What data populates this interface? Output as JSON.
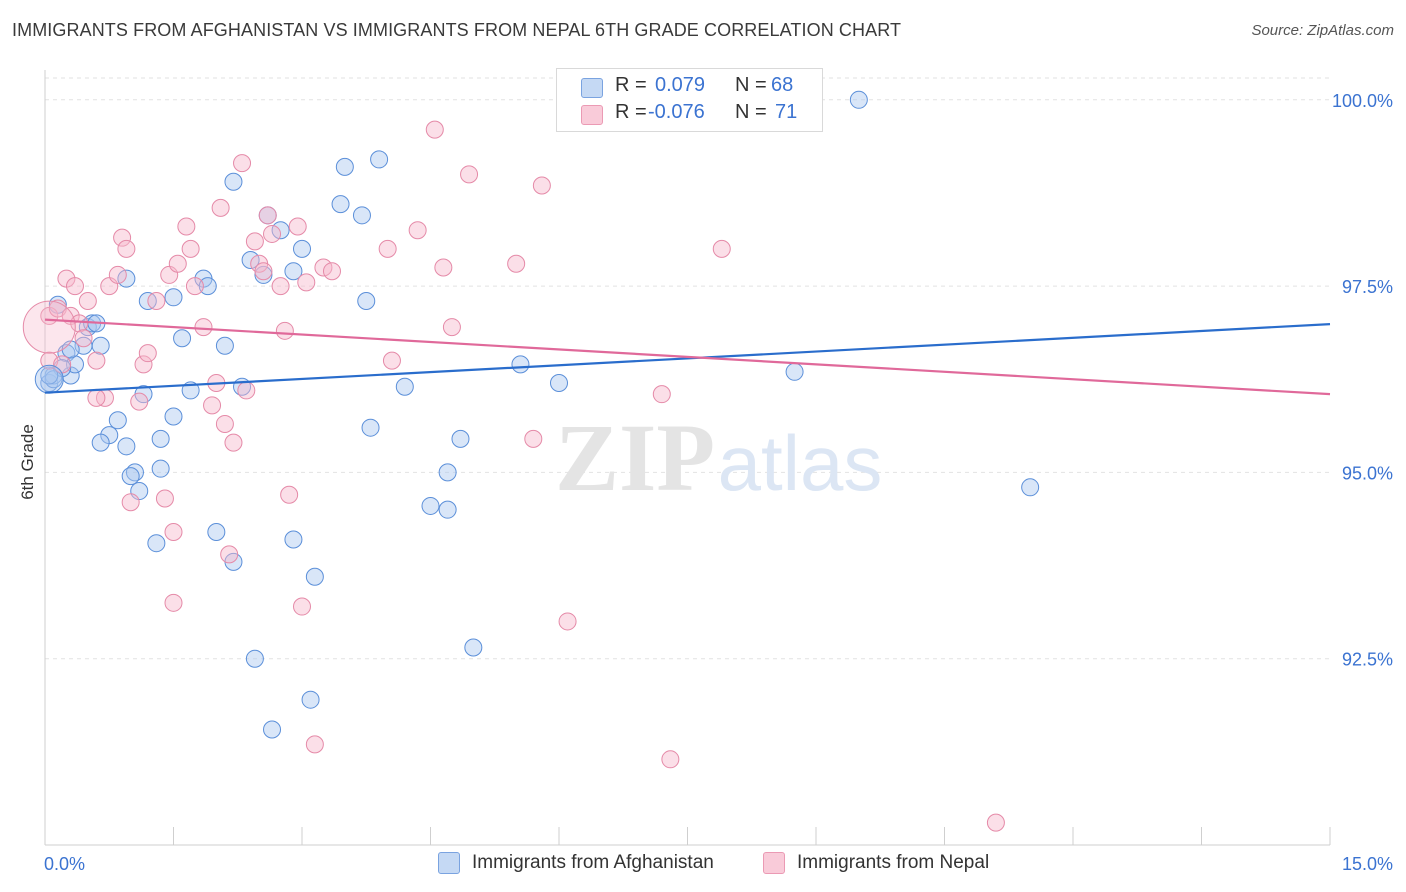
{
  "title": "IMMIGRANTS FROM AFGHANISTAN VS IMMIGRANTS FROM NEPAL 6TH GRADE CORRELATION CHART",
  "source": "Source: ZipAtlas.com",
  "watermark": {
    "zip": "ZIP",
    "atlas": "atlas"
  },
  "legend": {
    "rows": [
      {
        "r_label": "R =",
        "r_value": "0.079",
        "n_label": "N =",
        "n_value": "68"
      },
      {
        "r_label": "R =",
        "r_value": "-0.076",
        "n_label": "N =",
        "n_value": "71"
      }
    ]
  },
  "bottom_legend": [
    "Immigrants from Afghanistan",
    "Immigrants from Nepal"
  ],
  "colors": {
    "blue_fill": "#aac8f0",
    "blue_stroke": "#5b8fd9",
    "blue_line": "#2a6dcc",
    "pink_fill": "#f7b8cc",
    "pink_stroke": "#e58aa8",
    "pink_line": "#e0699a",
    "tick_label": "#3b73d1",
    "grid": "#e2e2e2"
  },
  "chart_data": {
    "type": "scatter",
    "xlabel": "",
    "ylabel": "6th Grade",
    "xlim": [
      0,
      15
    ],
    "ylim": [
      90.0,
      100.4
    ],
    "x_tick_labels": [
      {
        "value": 0,
        "label": "0.0%"
      },
      {
        "value": 15,
        "label": "15.0%"
      }
    ],
    "y_tick_labels": [
      {
        "value": 92.5,
        "label": "92.5%"
      },
      {
        "value": 95.0,
        "label": "95.0%"
      },
      {
        "value": 97.5,
        "label": "97.5%"
      },
      {
        "value": 100.0,
        "label": "100.0%"
      }
    ],
    "grid": "horizontal dashed",
    "series": [
      {
        "name": "Immigrants from Afghanistan",
        "color": "blue",
        "trend": {
          "x": [
            0,
            15
          ],
          "y": [
            96.07,
            96.99
          ]
        },
        "points": [
          [
            0.05,
            96.2
          ],
          [
            0.1,
            96.3
          ],
          [
            0.15,
            97.25
          ],
          [
            0.25,
            96.6
          ],
          [
            0.3,
            96.3
          ],
          [
            0.35,
            96.45
          ],
          [
            0.5,
            96.95
          ],
          [
            0.55,
            97.0
          ],
          [
            0.65,
            96.7
          ],
          [
            0.75,
            95.5
          ],
          [
            0.85,
            95.7
          ],
          [
            0.95,
            95.35
          ],
          [
            1.05,
            95.0
          ],
          [
            1.1,
            94.75
          ],
          [
            1.2,
            97.3
          ],
          [
            1.15,
            96.05
          ],
          [
            0.95,
            97.6
          ],
          [
            1.35,
            95.05
          ],
          [
            1.3,
            94.05
          ],
          [
            1.5,
            97.35
          ],
          [
            1.5,
            95.75
          ],
          [
            1.6,
            96.8
          ],
          [
            1.7,
            96.1
          ],
          [
            1.85,
            97.6
          ],
          [
            2.0,
            94.2
          ],
          [
            2.1,
            96.7
          ],
          [
            2.2,
            98.9
          ],
          [
            2.3,
            96.15
          ],
          [
            2.4,
            97.85
          ],
          [
            2.55,
            97.65
          ],
          [
            2.6,
            98.45
          ],
          [
            2.75,
            98.25
          ],
          [
            2.9,
            97.7
          ],
          [
            2.9,
            94.1
          ],
          [
            3.0,
            98.0
          ],
          [
            3.15,
            93.6
          ],
          [
            3.45,
            98.6
          ],
          [
            3.5,
            99.1
          ],
          [
            3.7,
            98.45
          ],
          [
            3.75,
            97.3
          ],
          [
            3.8,
            95.6
          ],
          [
            3.9,
            99.2
          ],
          [
            4.2,
            96.15
          ],
          [
            4.5,
            94.55
          ],
          [
            4.7,
            94.5
          ],
          [
            4.7,
            95.0
          ],
          [
            4.85,
            95.45
          ],
          [
            5.0,
            92.65
          ],
          [
            5.55,
            96.45
          ],
          [
            6.0,
            96.2
          ],
          [
            7.65,
            99.95
          ],
          [
            8.75,
            96.35
          ],
          [
            9.5,
            100.0
          ],
          [
            11.5,
            94.8
          ],
          [
            2.45,
            92.5
          ],
          [
            2.65,
            91.55
          ],
          [
            3.1,
            91.95
          ],
          [
            0.45,
            96.7
          ],
          [
            0.2,
            96.4
          ],
          [
            1.0,
            94.95
          ],
          [
            0.6,
            97.0
          ],
          [
            2.2,
            93.8
          ],
          [
            0.1,
            96.25
          ],
          [
            0.3,
            96.65
          ],
          [
            1.35,
            95.45
          ],
          [
            0.65,
            95.4
          ],
          [
            0.05,
            96.3
          ],
          [
            1.9,
            97.5
          ]
        ]
      },
      {
        "name": "Immigrants from Nepal",
        "color": "pink",
        "trend": {
          "x": [
            0,
            15
          ],
          "y": [
            97.05,
            96.05
          ]
        },
        "points": [
          [
            0.05,
            97.1
          ],
          [
            0.05,
            96.5
          ],
          [
            0.15,
            97.2
          ],
          [
            0.25,
            97.6
          ],
          [
            0.3,
            97.1
          ],
          [
            0.35,
            97.5
          ],
          [
            0.4,
            97.0
          ],
          [
            0.45,
            96.8
          ],
          [
            0.5,
            97.3
          ],
          [
            0.6,
            96.5
          ],
          [
            0.7,
            96.0
          ],
          [
            0.75,
            97.5
          ],
          [
            0.85,
            97.65
          ],
          [
            0.9,
            98.15
          ],
          [
            0.95,
            98.0
          ],
          [
            1.0,
            94.6
          ],
          [
            1.1,
            95.95
          ],
          [
            1.15,
            96.45
          ],
          [
            1.2,
            96.6
          ],
          [
            1.3,
            97.3
          ],
          [
            1.4,
            94.65
          ],
          [
            1.45,
            97.65
          ],
          [
            1.5,
            94.2
          ],
          [
            1.55,
            97.8
          ],
          [
            1.65,
            98.3
          ],
          [
            1.7,
            98.0
          ],
          [
            1.75,
            97.5
          ],
          [
            1.85,
            96.95
          ],
          [
            1.95,
            95.9
          ],
          [
            2.05,
            98.55
          ],
          [
            2.1,
            95.65
          ],
          [
            2.15,
            93.9
          ],
          [
            2.2,
            95.4
          ],
          [
            2.3,
            99.15
          ],
          [
            2.35,
            96.1
          ],
          [
            2.45,
            98.1
          ],
          [
            2.5,
            97.8
          ],
          [
            2.55,
            97.7
          ],
          [
            2.6,
            98.45
          ],
          [
            2.65,
            98.2
          ],
          [
            2.75,
            97.5
          ],
          [
            2.8,
            96.9
          ],
          [
            2.85,
            94.7
          ],
          [
            2.95,
            98.3
          ],
          [
            3.0,
            93.2
          ],
          [
            3.05,
            97.55
          ],
          [
            3.25,
            97.75
          ],
          [
            3.35,
            97.7
          ],
          [
            4.0,
            98.0
          ],
          [
            4.05,
            96.5
          ],
          [
            4.35,
            98.25
          ],
          [
            4.55,
            99.6
          ],
          [
            4.65,
            97.75
          ],
          [
            4.75,
            96.95
          ],
          [
            4.95,
            99.0
          ],
          [
            5.5,
            97.8
          ],
          [
            5.7,
            95.45
          ],
          [
            5.8,
            98.85
          ],
          [
            6.1,
            93.0
          ],
          [
            6.3,
            100.0
          ],
          [
            6.65,
            99.95
          ],
          [
            7.2,
            96.05
          ],
          [
            7.3,
            91.15
          ],
          [
            7.9,
            98.0
          ],
          [
            11.1,
            90.3
          ],
          [
            0.2,
            96.45
          ],
          [
            1.5,
            93.25
          ],
          [
            3.15,
            91.35
          ],
          [
            0.6,
            96.0
          ],
          [
            2.0,
            96.2
          ],
          [
            6.2,
            100.0
          ]
        ]
      }
    ]
  }
}
